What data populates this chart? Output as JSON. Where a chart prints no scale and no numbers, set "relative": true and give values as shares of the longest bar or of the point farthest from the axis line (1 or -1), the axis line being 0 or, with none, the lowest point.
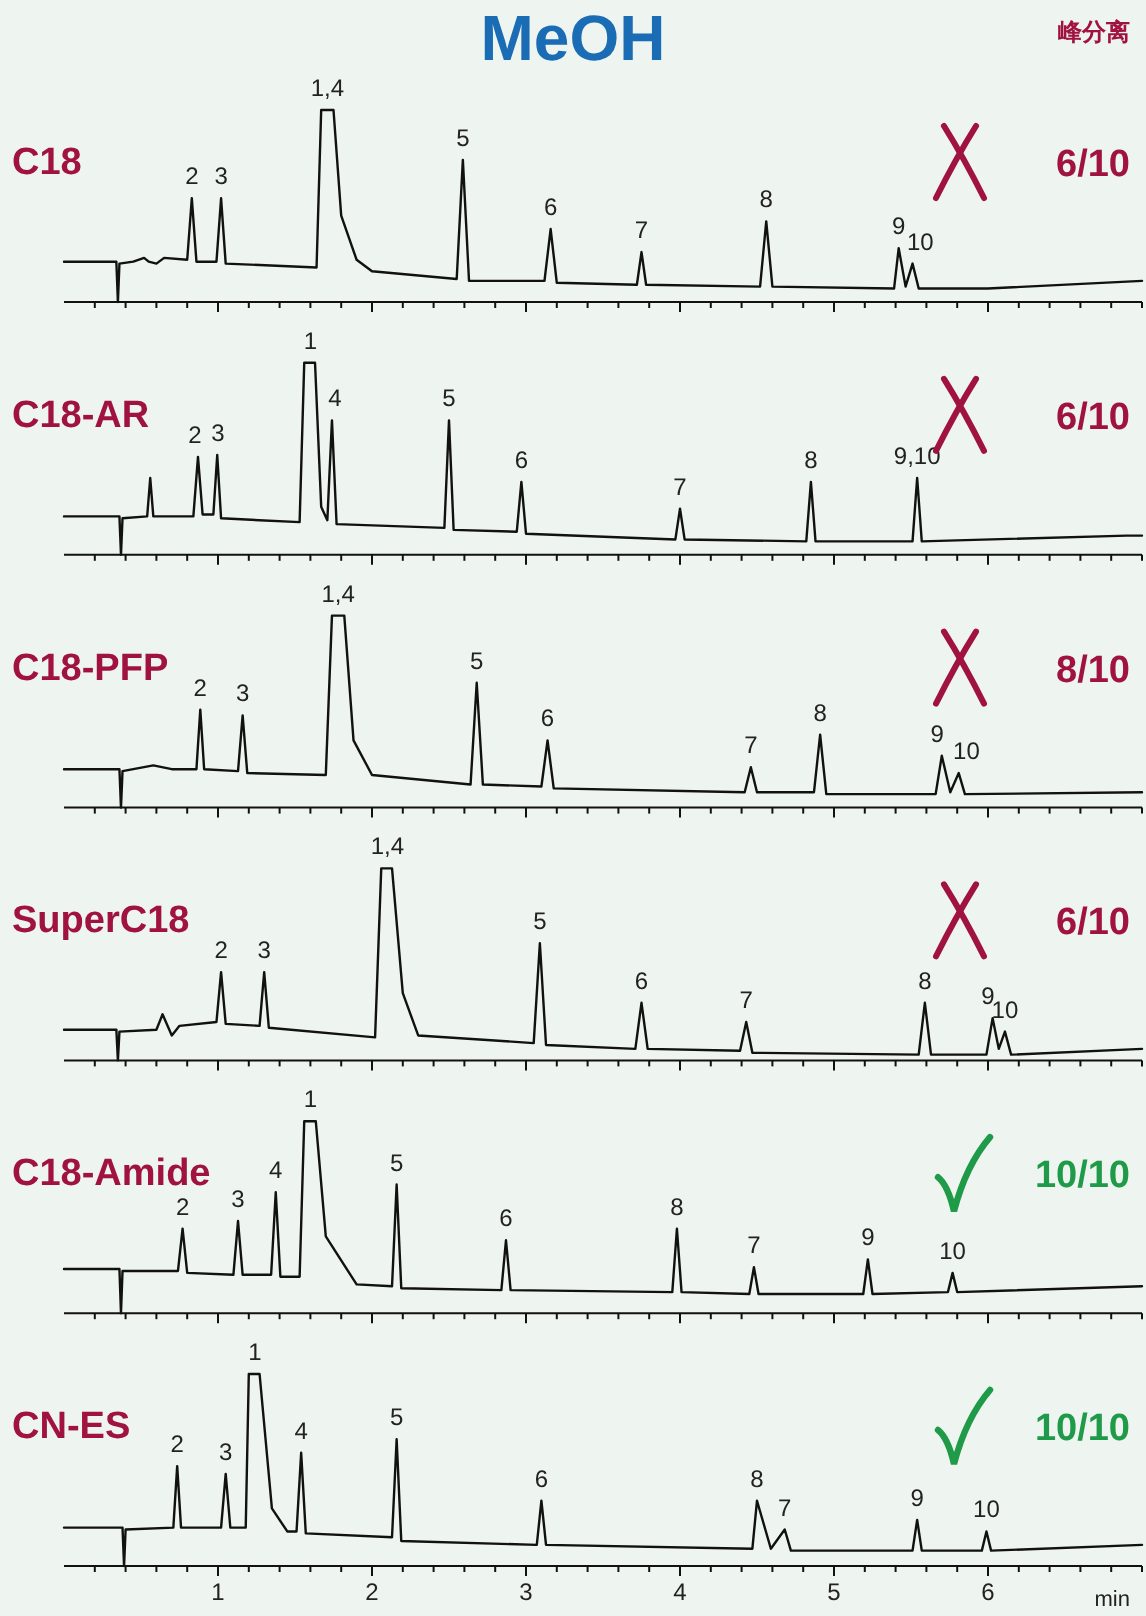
{
  "chart_data": [
    {
      "type": "line",
      "title": "C18",
      "subtitle": "6/10",
      "relative": true,
      "tick_labels": false,
      "xlim": [
        0,
        7
      ],
      "xticks": [
        {
          "value": 0.2,
          "label": null
        },
        {
          "value": 0.4,
          "label": null
        },
        {
          "value": 0.6,
          "label": null
        },
        {
          "value": 0.8,
          "label": null
        },
        1,
        {
          "value": 1.2,
          "label": null
        },
        {
          "value": 1.4,
          "label": null
        },
        {
          "value": 1.6,
          "label": null
        },
        {
          "value": 1.8,
          "label": null
        },
        2,
        {
          "value": 2.2,
          "label": null
        },
        {
          "value": 2.4,
          "label": null
        },
        {
          "value": 2.6,
          "label": null
        },
        {
          "value": 2.8,
          "label": null
        },
        3,
        {
          "value": 3.2,
          "label": null
        },
        {
          "value": 3.4,
          "label": null
        },
        {
          "value": 3.6,
          "label": null
        },
        {
          "value": 3.8,
          "label": null
        },
        4,
        {
          "value": 4.2,
          "label": null
        },
        {
          "value": 4.4,
          "label": null
        },
        {
          "value": 4.6,
          "label": null
        },
        {
          "value": 4.8,
          "label": null
        },
        5,
        {
          "value": 5.2,
          "label": null
        },
        {
          "value": 5.4,
          "label": null
        },
        {
          "value": 5.6,
          "label": null
        },
        {
          "value": 5.8,
          "label": null
        },
        6,
        {
          "value": 6.2,
          "label": null
        },
        {
          "value": 6.4,
          "label": null
        },
        {
          "value": 6.6,
          "label": null
        },
        {
          "value": 6.8,
          "label": null
        },
        {
          "value": 7,
          "label": null
        }
      ],
      "series": [
        {
          "color": "#111111",
          "x": [
            0,
            0.34,
            0.35,
            0.36,
            0.45,
            0.52,
            0.55,
            0.6,
            0.65,
            0.8,
            0.83,
            0.86,
            0.99,
            1.02,
            1.05,
            1.64,
            1.67,
            1.75,
            1.8,
            1.9,
            2.0,
            2.55,
            2.59,
            2.63,
            3.12,
            3.16,
            3.2,
            3.72,
            3.75,
            3.78,
            4.52,
            4.56,
            4.6,
            5.39,
            5.42,
            5.465,
            5.51,
            5.55,
            6.0,
            7.0
          ],
          "values": [
            0.21,
            0.21,
            0,
            0.2,
            0.21,
            0.23,
            0.21,
            0.2,
            0.23,
            0.22,
            0.54,
            0.21,
            0.21,
            0.54,
            0.2,
            0.18,
            1,
            1,
            0.45,
            0.22,
            0.16,
            0.12,
            0.74,
            0.11,
            0.11,
            0.38,
            0.1,
            0.09,
            0.26,
            0.09,
            0.08,
            0.42,
            0.08,
            0.07,
            0.28,
            0.08,
            0.2,
            0.07,
            0.07,
            0.11
          ]
        }
      ],
      "annotations": [
        "MeOH",
        "峰分离",
        {
          "text": "2",
          "x": 0.83,
          "y": 0.54
        },
        {
          "text": "3",
          "x": 1.02,
          "y": 0.54
        },
        {
          "text": "1,4",
          "x": 1.71,
          "y": 1
        },
        {
          "text": "5",
          "x": 2.59,
          "y": 0.74
        },
        {
          "text": "6",
          "x": 3.16,
          "y": 0.38
        },
        {
          "text": "7",
          "x": 3.75,
          "y": 0.26
        },
        {
          "text": "8",
          "x": 4.56,
          "y": 0.42
        },
        {
          "text": "9",
          "x": 5.42,
          "y": 0.28
        },
        {
          "text": "10",
          "x": 5.56,
          "y": 0.2
        }
      ]
    },
    {
      "type": "line",
      "title": "C18-AR",
      "subtitle": "6/10",
      "relative": true,
      "tick_labels": false,
      "xlim": [
        0,
        7
      ],
      "xticks": [
        {
          "value": 0.2,
          "label": null
        },
        {
          "value": 0.4,
          "label": null
        },
        {
          "value": 0.6,
          "label": null
        },
        {
          "value": 0.8,
          "label": null
        },
        1,
        {
          "value": 1.2,
          "label": null
        },
        {
          "value": 1.4,
          "label": null
        },
        {
          "value": 1.6,
          "label": null
        },
        {
          "value": 1.8,
          "label": null
        },
        2,
        {
          "value": 2.2,
          "label": null
        },
        {
          "value": 2.4,
          "label": null
        },
        {
          "value": 2.6,
          "label": null
        },
        {
          "value": 2.8,
          "label": null
        },
        3,
        {
          "value": 3.2,
          "label": null
        },
        {
          "value": 3.4,
          "label": null
        },
        {
          "value": 3.6,
          "label": null
        },
        {
          "value": 3.8,
          "label": null
        },
        4,
        {
          "value": 4.2,
          "label": null
        },
        {
          "value": 4.4,
          "label": null
        },
        {
          "value": 4.6,
          "label": null
        },
        {
          "value": 4.8,
          "label": null
        },
        5,
        {
          "value": 5.2,
          "label": null
        },
        {
          "value": 5.4,
          "label": null
        },
        {
          "value": 5.6,
          "label": null
        },
        {
          "value": 5.8,
          "label": null
        },
        6,
        {
          "value": 6.2,
          "label": null
        },
        {
          "value": 6.4,
          "label": null
        },
        {
          "value": 6.6,
          "label": null
        },
        {
          "value": 6.8,
          "label": null
        },
        {
          "value": 7,
          "label": null
        }
      ],
      "series": [
        {
          "color": "#111111",
          "x": [
            0,
            0.36,
            0.37,
            0.38,
            0.54,
            0.56,
            0.58,
            0.84,
            0.87,
            0.9,
            0.97,
            0.995,
            1.02,
            1.53,
            1.56,
            1.63,
            1.67,
            1.71,
            1.74,
            1.77,
            2.47,
            2.5,
            2.53,
            2.94,
            2.97,
            3.0,
            3.97,
            4.0,
            4.03,
            4.82,
            4.85,
            4.88,
            5.51,
            5.54,
            5.57,
            6.9,
            7.0
          ],
          "values": [
            0.2,
            0.2,
            0,
            0.19,
            0.2,
            0.4,
            0.2,
            0.2,
            0.51,
            0.21,
            0.21,
            0.52,
            0.19,
            0.17,
            1,
            1,
            0.25,
            0.18,
            0.7,
            0.16,
            0.14,
            0.7,
            0.13,
            0.12,
            0.38,
            0.11,
            0.08,
            0.24,
            0.08,
            0.07,
            0.38,
            0.07,
            0.07,
            0.4,
            0.07,
            0.1,
            0.1
          ]
        }
      ],
      "annotations": [
        {
          "text": "2",
          "x": 0.85,
          "y": 0.51
        },
        {
          "text": "3",
          "x": 1.0,
          "y": 0.52
        },
        {
          "text": "1",
          "x": 1.6,
          "y": 1
        },
        {
          "text": "4",
          "x": 1.76,
          "y": 0.7
        },
        {
          "text": "5",
          "x": 2.5,
          "y": 0.7
        },
        {
          "text": "6",
          "x": 2.97,
          "y": 0.38
        },
        {
          "text": "7",
          "x": 4.0,
          "y": 0.24
        },
        {
          "text": "8",
          "x": 4.85,
          "y": 0.38
        },
        {
          "text": "9,10",
          "x": 5.54,
          "y": 0.4
        }
      ]
    },
    {
      "type": "line",
      "title": "C18-PFP",
      "subtitle": "8/10",
      "relative": true,
      "tick_labels": false,
      "xlim": [
        0,
        7
      ],
      "xticks": [
        {
          "value": 0.2,
          "label": null
        },
        {
          "value": 0.4,
          "label": null
        },
        {
          "value": 0.6,
          "label": null
        },
        {
          "value": 0.8,
          "label": null
        },
        1,
        {
          "value": 1.2,
          "label": null
        },
        {
          "value": 1.4,
          "label": null
        },
        {
          "value": 1.6,
          "label": null
        },
        {
          "value": 1.8,
          "label": null
        },
        2,
        {
          "value": 2.2,
          "label": null
        },
        {
          "value": 2.4,
          "label": null
        },
        {
          "value": 2.6,
          "label": null
        },
        {
          "value": 2.8,
          "label": null
        },
        3,
        {
          "value": 3.2,
          "label": null
        },
        {
          "value": 3.4,
          "label": null
        },
        {
          "value": 3.6,
          "label": null
        },
        {
          "value": 3.8,
          "label": null
        },
        4,
        {
          "value": 4.2,
          "label": null
        },
        {
          "value": 4.4,
          "label": null
        },
        {
          "value": 4.6,
          "label": null
        },
        {
          "value": 4.8,
          "label": null
        },
        5,
        {
          "value": 5.2,
          "label": null
        },
        {
          "value": 5.4,
          "label": null
        },
        {
          "value": 5.6,
          "label": null
        },
        {
          "value": 5.8,
          "label": null
        },
        6,
        {
          "value": 6.2,
          "label": null
        },
        {
          "value": 6.4,
          "label": null
        },
        {
          "value": 6.6,
          "label": null
        },
        {
          "value": 6.8,
          "label": null
        },
        {
          "value": 7,
          "label": null
        }
      ],
      "series": [
        {
          "color": "#111111",
          "x": [
            0,
            0.36,
            0.37,
            0.38,
            0.58,
            0.7,
            0.86,
            0.885,
            0.91,
            1.13,
            1.16,
            1.19,
            1.7,
            1.74,
            1.82,
            1.88,
            2.0,
            2.64,
            2.68,
            2.72,
            3.1,
            3.14,
            3.18,
            4.42,
            4.46,
            4.5,
            4.87,
            4.91,
            4.95,
            5.66,
            5.7,
            5.755,
            5.81,
            5.85,
            7.0
          ],
          "values": [
            0.2,
            0.2,
            0,
            0.19,
            0.22,
            0.2,
            0.2,
            0.51,
            0.2,
            0.19,
            0.48,
            0.18,
            0.17,
            1,
            1,
            0.35,
            0.17,
            0.12,
            0.65,
            0.12,
            0.11,
            0.35,
            0.1,
            0.08,
            0.21,
            0.08,
            0.08,
            0.38,
            0.07,
            0.07,
            0.27,
            0.08,
            0.18,
            0.07,
            0.08
          ]
        }
      ],
      "annotations": [
        {
          "text": "2",
          "x": 0.885,
          "y": 0.51
        },
        {
          "text": "3",
          "x": 1.16,
          "y": 0.48
        },
        {
          "text": "1,4",
          "x": 1.78,
          "y": 1
        },
        {
          "text": "5",
          "x": 2.68,
          "y": 0.65
        },
        {
          "text": "6",
          "x": 3.14,
          "y": 0.35
        },
        {
          "text": "7",
          "x": 4.46,
          "y": 0.21
        },
        {
          "text": "8",
          "x": 4.91,
          "y": 0.38
        },
        {
          "text": "9",
          "x": 5.67,
          "y": 0.27
        },
        {
          "text": "10",
          "x": 5.86,
          "y": 0.18
        }
      ]
    },
    {
      "type": "line",
      "title": "SuperC18",
      "subtitle": "6/10",
      "relative": true,
      "tick_labels": false,
      "xlim": [
        0,
        7
      ],
      "xticks": [
        {
          "value": 0.2,
          "label": null
        },
        {
          "value": 0.4,
          "label": null
        },
        {
          "value": 0.6,
          "label": null
        },
        {
          "value": 0.8,
          "label": null
        },
        1,
        {
          "value": 1.2,
          "label": null
        },
        {
          "value": 1.4,
          "label": null
        },
        {
          "value": 1.6,
          "label": null
        },
        {
          "value": 1.8,
          "label": null
        },
        2,
        {
          "value": 2.2,
          "label": null
        },
        {
          "value": 2.4,
          "label": null
        },
        {
          "value": 2.6,
          "label": null
        },
        {
          "value": 2.8,
          "label": null
        },
        3,
        {
          "value": 3.2,
          "label": null
        },
        {
          "value": 3.4,
          "label": null
        },
        {
          "value": 3.6,
          "label": null
        },
        {
          "value": 3.8,
          "label": null
        },
        4,
        {
          "value": 4.2,
          "label": null
        },
        {
          "value": 4.4,
          "label": null
        },
        {
          "value": 4.6,
          "label": null
        },
        {
          "value": 4.8,
          "label": null
        },
        5,
        {
          "value": 5.2,
          "label": null
        },
        {
          "value": 5.4,
          "label": null
        },
        {
          "value": 5.6,
          "label": null
        },
        {
          "value": 5.8,
          "label": null
        },
        6,
        {
          "value": 6.2,
          "label": null
        },
        {
          "value": 6.4,
          "label": null
        },
        {
          "value": 6.6,
          "label": null
        },
        {
          "value": 6.8,
          "label": null
        },
        {
          "value": 7,
          "label": null
        }
      ],
      "series": [
        {
          "color": "#111111",
          "x": [
            0,
            0.34,
            0.35,
            0.36,
            0.6,
            0.64,
            0.7,
            0.75,
            0.99,
            1.02,
            1.05,
            1.27,
            1.3,
            1.33,
            2.02,
            2.06,
            2.13,
            2.2,
            2.3,
            3.05,
            3.09,
            3.13,
            3.71,
            3.75,
            3.79,
            4.39,
            4.43,
            4.47,
            5.55,
            5.59,
            5.63,
            5.99,
            6.03,
            6.07,
            6.11,
            6.15,
            7.0
          ],
          "values": [
            0.16,
            0.16,
            0,
            0.15,
            0.16,
            0.24,
            0.13,
            0.18,
            0.2,
            0.46,
            0.19,
            0.18,
            0.46,
            0.17,
            0.12,
            1,
            1,
            0.35,
            0.13,
            0.09,
            0.61,
            0.08,
            0.06,
            0.3,
            0.06,
            0.05,
            0.2,
            0.04,
            0.03,
            0.3,
            0.03,
            0.03,
            0.22,
            0.06,
            0.15,
            0.03,
            0.06
          ]
        }
      ],
      "annotations": [
        {
          "text": "2",
          "x": 1.02,
          "y": 0.46
        },
        {
          "text": "3",
          "x": 1.3,
          "y": 0.46
        },
        {
          "text": "1,4",
          "x": 2.1,
          "y": 1
        },
        {
          "text": "5",
          "x": 3.09,
          "y": 0.61
        },
        {
          "text": "6",
          "x": 3.75,
          "y": 0.3
        },
        {
          "text": "7",
          "x": 4.43,
          "y": 0.2
        },
        {
          "text": "8",
          "x": 5.59,
          "y": 0.3
        },
        {
          "text": "9",
          "x": 6.0,
          "y": 0.22
        },
        {
          "text": "10",
          "x": 6.11,
          "y": 0.15
        }
      ]
    },
    {
      "type": "line",
      "title": "C18-Amide",
      "subtitle": "10/10",
      "relative": true,
      "tick_labels": false,
      "xlim": [
        0,
        7
      ],
      "xticks": [
        {
          "value": 0.2,
          "label": null
        },
        {
          "value": 0.4,
          "label": null
        },
        {
          "value": 0.6,
          "label": null
        },
        {
          "value": 0.8,
          "label": null
        },
        1,
        {
          "value": 1.2,
          "label": null
        },
        {
          "value": 1.4,
          "label": null
        },
        {
          "value": 1.6,
          "label": null
        },
        {
          "value": 1.8,
          "label": null
        },
        2,
        {
          "value": 2.2,
          "label": null
        },
        {
          "value": 2.4,
          "label": null
        },
        {
          "value": 2.6,
          "label": null
        },
        {
          "value": 2.8,
          "label": null
        },
        3,
        {
          "value": 3.2,
          "label": null
        },
        {
          "value": 3.4,
          "label": null
        },
        {
          "value": 3.6,
          "label": null
        },
        {
          "value": 3.8,
          "label": null
        },
        4,
        {
          "value": 4.2,
          "label": null
        },
        {
          "value": 4.4,
          "label": null
        },
        {
          "value": 4.6,
          "label": null
        },
        {
          "value": 4.8,
          "label": null
        },
        5,
        {
          "value": 5.2,
          "label": null
        },
        {
          "value": 5.4,
          "label": null
        },
        {
          "value": 5.6,
          "label": null
        },
        {
          "value": 5.8,
          "label": null
        },
        6,
        {
          "value": 6.2,
          "label": null
        },
        {
          "value": 6.4,
          "label": null
        },
        {
          "value": 6.6,
          "label": null
        },
        {
          "value": 6.8,
          "label": null
        },
        {
          "value": 7,
          "label": null
        }
      ],
      "series": [
        {
          "color": "#111111",
          "x": [
            0,
            0.36,
            0.37,
            0.38,
            0.74,
            0.77,
            0.8,
            1.1,
            1.13,
            1.16,
            1.345,
            1.375,
            1.405,
            1.53,
            1.56,
            1.635,
            1.7,
            1.9,
            2.13,
            2.16,
            2.19,
            2.84,
            2.87,
            2.9,
            3.95,
            3.98,
            4.01,
            4.45,
            4.48,
            4.51,
            5.19,
            5.22,
            5.25,
            5.74,
            5.77,
            5.8,
            7.0
          ],
          "values": [
            0.23,
            0.23,
            0,
            0.22,
            0.22,
            0.44,
            0.21,
            0.2,
            0.48,
            0.2,
            0.2,
            0.63,
            0.19,
            0.19,
            1,
            1,
            0.4,
            0.15,
            0.14,
            0.67,
            0.13,
            0.12,
            0.38,
            0.12,
            0.11,
            0.44,
            0.11,
            0.1,
            0.24,
            0.1,
            0.1,
            0.28,
            0.1,
            0.11,
            0.21,
            0.11,
            0.14
          ]
        }
      ],
      "annotations": [
        {
          "text": "2",
          "x": 0.77,
          "y": 0.44
        },
        {
          "text": "3",
          "x": 1.13,
          "y": 0.48
        },
        {
          "text": "4",
          "x": 1.375,
          "y": 0.63
        },
        {
          "text": "1",
          "x": 1.6,
          "y": 1
        },
        {
          "text": "5",
          "x": 2.16,
          "y": 0.67
        },
        {
          "text": "6",
          "x": 2.87,
          "y": 0.38
        },
        {
          "text": "8",
          "x": 3.98,
          "y": 0.44
        },
        {
          "text": "7",
          "x": 4.48,
          "y": 0.24
        },
        {
          "text": "9",
          "x": 5.22,
          "y": 0.28
        },
        {
          "text": "10",
          "x": 5.77,
          "y": 0.21
        }
      ]
    },
    {
      "type": "line",
      "title": "CN-ES",
      "subtitle": "10/10",
      "relative": true,
      "tick_labels": "x",
      "xlabel": "min",
      "xlim": [
        0,
        7
      ],
      "xticks": [
        {
          "value": 0.2,
          "label": null
        },
        {
          "value": 0.4,
          "label": null
        },
        {
          "value": 0.6,
          "label": null
        },
        {
          "value": 0.8,
          "label": null
        },
        1,
        {
          "value": 1.2,
          "label": null
        },
        {
          "value": 1.4,
          "label": null
        },
        {
          "value": 1.6,
          "label": null
        },
        {
          "value": 1.8,
          "label": null
        },
        2,
        {
          "value": 2.2,
          "label": null
        },
        {
          "value": 2.4,
          "label": null
        },
        {
          "value": 2.6,
          "label": null
        },
        {
          "value": 2.8,
          "label": null
        },
        3,
        {
          "value": 3.2,
          "label": null
        },
        {
          "value": 3.4,
          "label": null
        },
        {
          "value": 3.6,
          "label": null
        },
        {
          "value": 3.8,
          "label": null
        },
        4,
        {
          "value": 4.2,
          "label": null
        },
        {
          "value": 4.4,
          "label": null
        },
        {
          "value": 4.6,
          "label": null
        },
        {
          "value": 4.8,
          "label": null
        },
        5,
        {
          "value": 5.2,
          "label": null
        },
        {
          "value": 5.4,
          "label": null
        },
        {
          "value": 5.6,
          "label": null
        },
        {
          "value": 5.8,
          "label": null
        },
        6,
        {
          "value": 6.2,
          "label": null
        },
        {
          "value": 6.4,
          "label": null
        },
        {
          "value": 6.6,
          "label": null
        },
        {
          "value": 6.8,
          "label": null
        },
        {
          "value": 7,
          "label": null
        }
      ],
      "series": [
        {
          "color": "#111111",
          "x": [
            0,
            0.38,
            0.39,
            0.4,
            0.71,
            0.735,
            0.76,
            1.02,
            1.05,
            1.08,
            1.18,
            1.2,
            1.27,
            1.35,
            1.45,
            1.51,
            1.54,
            1.57,
            2.13,
            2.16,
            2.19,
            3.07,
            3.1,
            3.13,
            4.47,
            4.5,
            4.59,
            4.68,
            4.72,
            5.51,
            5.54,
            5.57,
            5.96,
            5.99,
            6.02,
            7.0
          ],
          "values": [
            0.2,
            0.2,
            0,
            0.19,
            0.2,
            0.52,
            0.2,
            0.2,
            0.48,
            0.2,
            0.2,
            1,
            1,
            0.3,
            0.18,
            0.18,
            0.59,
            0.17,
            0.15,
            0.66,
            0.13,
            0.11,
            0.34,
            0.11,
            0.09,
            0.34,
            0.09,
            0.19,
            0.08,
            0.08,
            0.24,
            0.08,
            0.08,
            0.18,
            0.08,
            0.11
          ]
        }
      ],
      "annotations": [
        {
          "text": "2",
          "x": 0.735,
          "y": 0.52
        },
        {
          "text": "3",
          "x": 1.05,
          "y": 0.48
        },
        {
          "text": "1",
          "x": 1.24,
          "y": 1
        },
        {
          "text": "4",
          "x": 1.54,
          "y": 0.59
        },
        {
          "text": "5",
          "x": 2.16,
          "y": 0.66
        },
        {
          "text": "6",
          "x": 3.1,
          "y": 0.34
        },
        {
          "text": "8",
          "x": 4.5,
          "y": 0.34
        },
        {
          "text": "7",
          "x": 4.68,
          "y": 0.19
        },
        {
          "text": "9",
          "x": 5.54,
          "y": 0.24
        },
        {
          "text": "10",
          "x": 5.99,
          "y": 0.18
        }
      ]
    }
  ]
}
